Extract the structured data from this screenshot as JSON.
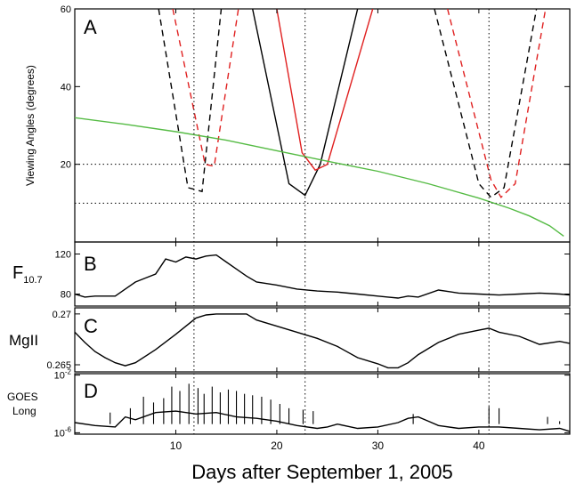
{
  "chart_data": [
    {
      "panel_label": "A",
      "type": "line",
      "ylabel": "Viewing Angles (degrees)",
      "xlim": [
        0,
        49
      ],
      "ylim": [
        0,
        60
      ],
      "yticks": [
        20,
        40,
        60
      ],
      "reference_lines_y": [
        10,
        20
      ],
      "series": [
        {
          "style": "solid",
          "color": "#000000",
          "x": [
            17.6,
            21.2,
            22.8,
            24.3,
            28.0
          ],
          "y": [
            60,
            15,
            12,
            20,
            60
          ]
        },
        {
          "style": "solid",
          "color": "#e02020",
          "x": [
            20.0,
            22.5,
            23.8,
            25.0,
            29.5
          ],
          "y": [
            60,
            23,
            18.5,
            20,
            60
          ]
        },
        {
          "style": "dashed",
          "color": "#000000",
          "x": [
            8.3,
            11.2,
            12.6,
            14.5
          ],
          "y": [
            60,
            14,
            13,
            60
          ]
        },
        {
          "style": "dashed",
          "color": "#e02020",
          "x": [
            9.7,
            12.9,
            13.8,
            16.2
          ],
          "y": [
            60,
            20,
            19.5,
            60
          ]
        },
        {
          "style": "dashed",
          "color": "#000000",
          "x": [
            35.6,
            40.0,
            41.2,
            42.5,
            45.7
          ],
          "y": [
            60,
            15,
            11.5,
            14,
            60
          ]
        },
        {
          "style": "dashed",
          "color": "#e02020",
          "x": [
            36.9,
            41.2,
            42.2,
            43.6,
            46.6
          ],
          "y": [
            60,
            16,
            11.5,
            15,
            60
          ]
        },
        {
          "style": "solid",
          "color": "#55bb44",
          "x": [
            0,
            5,
            10,
            15,
            20,
            25,
            30,
            35,
            40,
            43,
            45,
            47,
            48.4
          ],
          "y": [
            32,
            30.3,
            28.4,
            26.2,
            23.5,
            20.8,
            18.2,
            15,
            11.3,
            8.7,
            6.7,
            4.2,
            1.5
          ]
        }
      ]
    },
    {
      "panel_label": "B",
      "type": "line",
      "ylabel": "F",
      "ylabel_sub": "10.7",
      "xlim": [
        0,
        49
      ],
      "ylim": [
        68,
        132
      ],
      "yticks": [
        80,
        120
      ],
      "series": [
        {
          "style": "solid",
          "color": "#000000",
          "x": [
            0,
            1,
            2,
            4,
            5,
            6,
            7,
            8,
            9,
            10,
            11,
            12,
            13,
            14,
            15,
            16,
            17,
            18,
            20,
            22,
            24,
            26,
            28,
            30,
            31,
            32,
            33,
            34,
            36,
            38,
            40,
            42,
            44,
            46,
            48,
            49
          ],
          "y": [
            80,
            77,
            78,
            78,
            85,
            92,
            96,
            100,
            115,
            112,
            117,
            115,
            118,
            119,
            112,
            105,
            98,
            92,
            89,
            85,
            83,
            82,
            80,
            78,
            77,
            76,
            78,
            77,
            84,
            81,
            80,
            79,
            80,
            81,
            80,
            79
          ]
        }
      ]
    },
    {
      "panel_label": "C",
      "type": "line",
      "ylabel": "MgII",
      "xlim": [
        0,
        49
      ],
      "ylim": [
        0.2643,
        0.2706
      ],
      "yticks": [
        0.265,
        0.27
      ],
      "series": [
        {
          "style": "solid",
          "color": "#000000",
          "x": [
            0,
            1,
            2,
            3,
            4,
            5,
            6,
            8,
            10,
            12,
            13,
            14,
            15,
            16,
            17,
            18,
            20,
            22,
            24,
            26,
            28,
            30,
            31,
            32,
            33,
            34,
            36,
            38,
            40,
            41,
            42,
            44,
            46,
            48,
            49
          ],
          "y": [
            0.2682,
            0.2672,
            0.2663,
            0.2657,
            0.2652,
            0.2649,
            0.2652,
            0.2665,
            0.268,
            0.2696,
            0.2699,
            0.27,
            0.27,
            0.27,
            0.27,
            0.2694,
            0.2688,
            0.2682,
            0.2676,
            0.2668,
            0.2657,
            0.2651,
            0.2647,
            0.2647,
            0.2652,
            0.266,
            0.2672,
            0.268,
            0.2684,
            0.2686,
            0.2682,
            0.2678,
            0.267,
            0.2673,
            0.2671
          ]
        }
      ]
    },
    {
      "panel_label": "D",
      "type": "line",
      "ylabel": "GOES",
      "ylabel_2": "Long",
      "xlim": [
        0,
        49
      ],
      "ylim_log10": [
        -6.1,
        -1.9
      ],
      "yticks_log10": [
        -6,
        -2
      ],
      "ytick_base": "10",
      "ytick_exps": [
        "-6",
        "-2"
      ],
      "series": [
        {
          "style": "solid",
          "color": "#000000",
          "x": [
            0,
            2,
            4,
            5,
            6,
            8,
            10,
            12,
            14,
            16,
            18,
            20,
            22,
            24,
            25,
            26,
            28,
            30,
            32,
            33,
            34,
            35,
            36,
            38,
            40,
            42,
            44,
            46,
            48,
            49
          ],
          "y": [
            -5.3,
            -5.5,
            -5.6,
            -4.9,
            -5.1,
            -4.6,
            -4.5,
            -4.7,
            -4.6,
            -4.9,
            -5.0,
            -5.2,
            -5.5,
            -5.7,
            -5.6,
            -5.4,
            -5.7,
            -5.6,
            -5.3,
            -5.0,
            -4.9,
            -5.2,
            -5.5,
            -5.7,
            -5.6,
            -5.6,
            -5.7,
            -5.8,
            -5.7,
            -5.9
          ]
        }
      ],
      "flares": [
        {
          "x": 3.5,
          "y": -4.6
        },
        {
          "x": 5.5,
          "y": -4.3
        },
        {
          "x": 6.8,
          "y": -3.5
        },
        {
          "x": 7.8,
          "y": -3.9
        },
        {
          "x": 8.8,
          "y": -3.6
        },
        {
          "x": 9.6,
          "y": -2.8
        },
        {
          "x": 10.4,
          "y": -3.1
        },
        {
          "x": 11.3,
          "y": -2.6
        },
        {
          "x": 12.2,
          "y": -2.9
        },
        {
          "x": 12.8,
          "y": -3.3
        },
        {
          "x": 13.6,
          "y": -2.8
        },
        {
          "x": 14.4,
          "y": -3.2
        },
        {
          "x": 15.2,
          "y": -3.0
        },
        {
          "x": 16.0,
          "y": -3.1
        },
        {
          "x": 16.8,
          "y": -3.3
        },
        {
          "x": 17.6,
          "y": -3.4
        },
        {
          "x": 18.5,
          "y": -3.5
        },
        {
          "x": 19.4,
          "y": -3.7
        },
        {
          "x": 20.3,
          "y": -4.0
        },
        {
          "x": 21.2,
          "y": -4.3
        },
        {
          "x": 22.6,
          "y": -4.4
        },
        {
          "x": 23.6,
          "y": -4.5
        },
        {
          "x": 33.5,
          "y": -4.7
        },
        {
          "x": 41.0,
          "y": -4.2
        },
        {
          "x": 42.0,
          "y": -4.3
        },
        {
          "x": 46.8,
          "y": -4.9
        },
        {
          "x": 48.0,
          "y": -5.2
        }
      ]
    }
  ],
  "shared": {
    "xlabel": "Days after September 1, 2005",
    "xticks": [
      10,
      20,
      30,
      40
    ],
    "vertical_reference_lines_x": [
      11.8,
      22.8,
      41.0
    ]
  }
}
